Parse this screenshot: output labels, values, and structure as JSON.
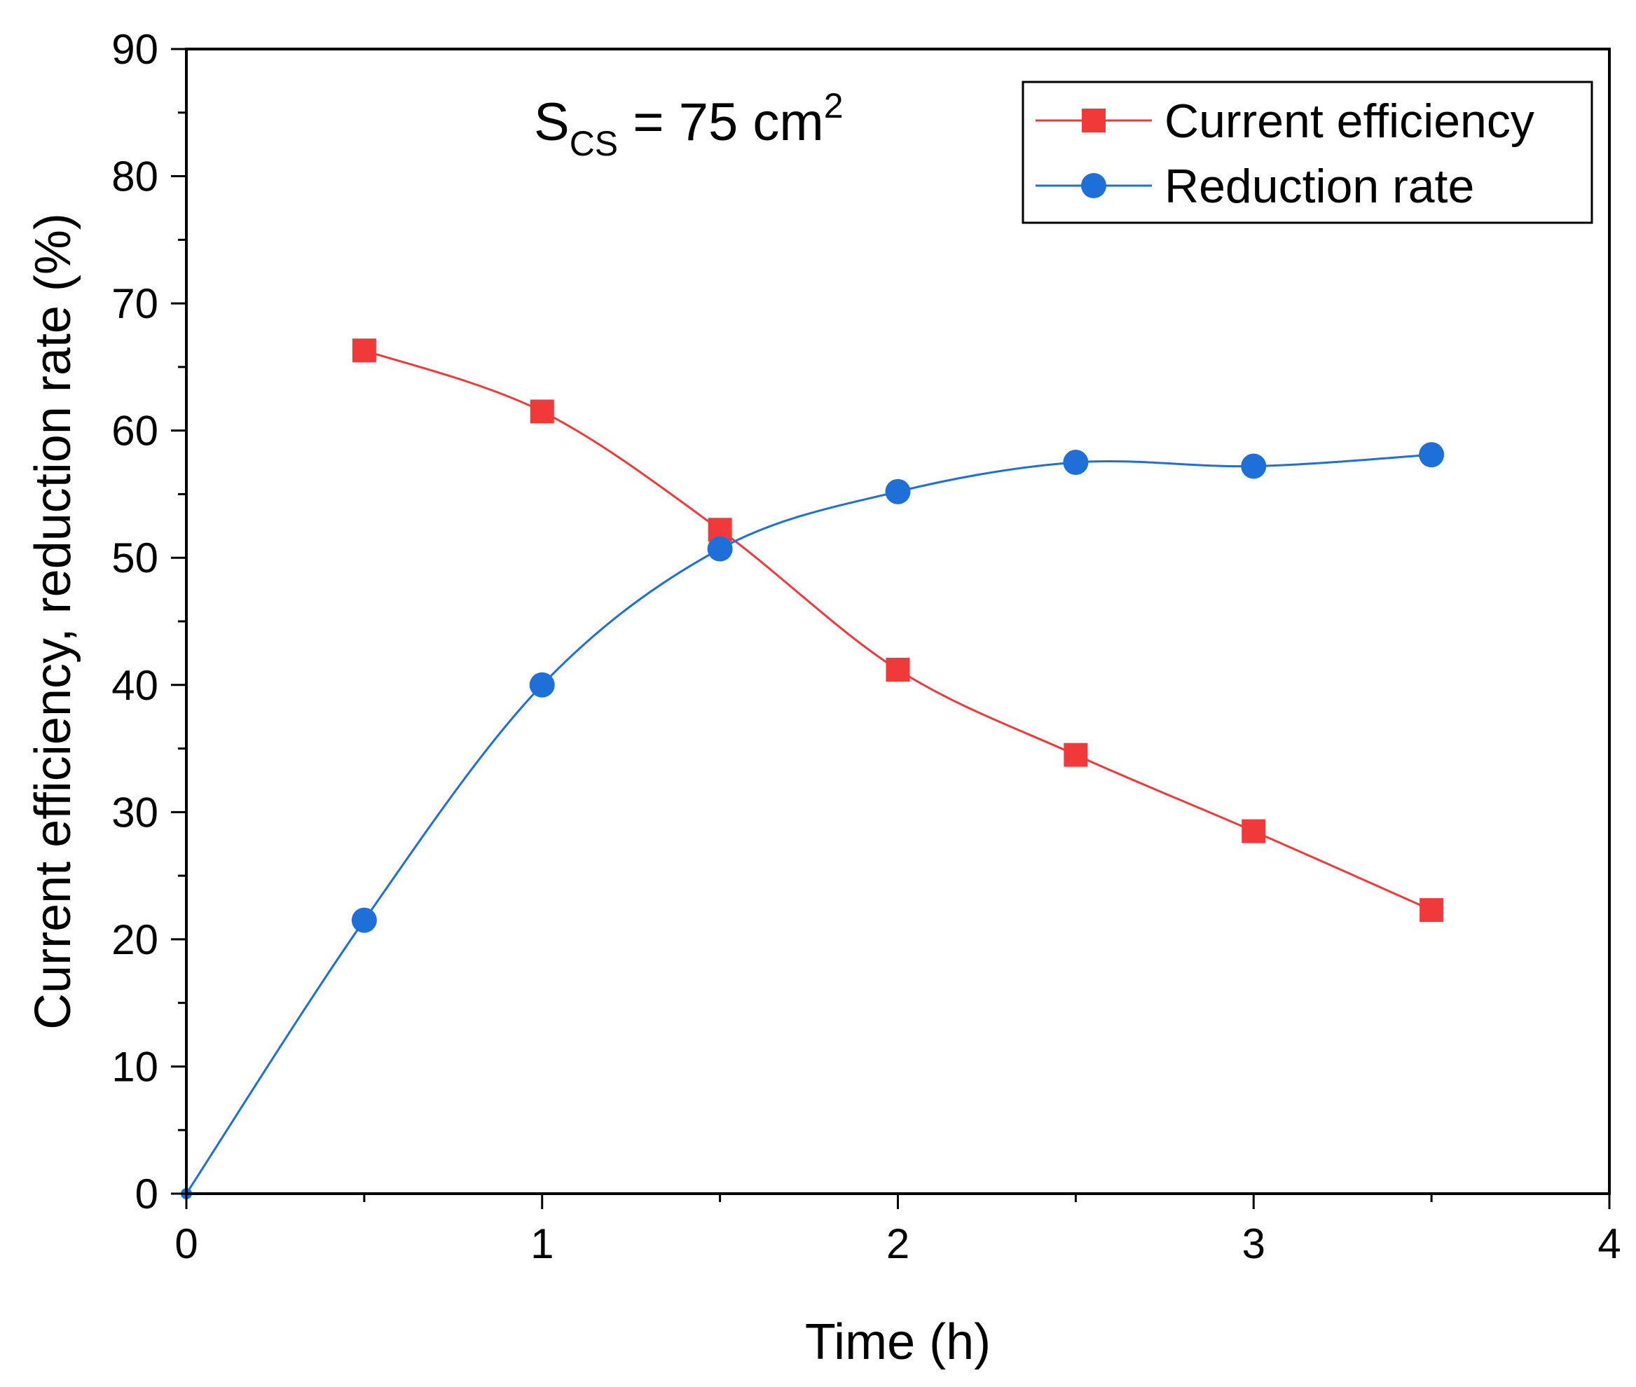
{
  "chart_data": {
    "type": "line",
    "title": "",
    "xlabel": "Time (h)",
    "ylabel": "Current efficiency, reduction rate (%)",
    "xlim": [
      0,
      4
    ],
    "ylim": [
      0,
      90
    ],
    "xticks": [
      0,
      1,
      2,
      3,
      4
    ],
    "yticks": [
      0,
      10,
      20,
      30,
      40,
      50,
      60,
      70,
      80,
      90
    ],
    "xtick_labels": [
      "0",
      "1",
      "2",
      "3",
      "4"
    ],
    "ytick_labels": [
      "0",
      "10",
      "20",
      "30",
      "40",
      "50",
      "60",
      "70",
      "80",
      "90"
    ],
    "grid": false,
    "legend_position": "top-right",
    "annotation": {
      "main": "S",
      "sub": "CS",
      "rest": " = 75 cm",
      "sup": "2"
    },
    "series": [
      {
        "name": "Current efficiency",
        "color": "#f03a3a",
        "marker": "square",
        "x": [
          0.5,
          1.0,
          1.5,
          2.0,
          2.5,
          3.0,
          3.5
        ],
        "values": [
          66.3,
          61.5,
          52.2,
          41.2,
          34.5,
          28.5,
          22.3
        ]
      },
      {
        "name": "Reduction rate",
        "color": "#1f6fd9",
        "marker": "circle",
        "x": [
          0,
          0.5,
          1.0,
          1.5,
          2.0,
          2.5,
          3.0,
          3.5
        ],
        "values": [
          0,
          21.5,
          40.0,
          50.7,
          55.2,
          57.5,
          57.2,
          58.1
        ]
      }
    ]
  }
}
